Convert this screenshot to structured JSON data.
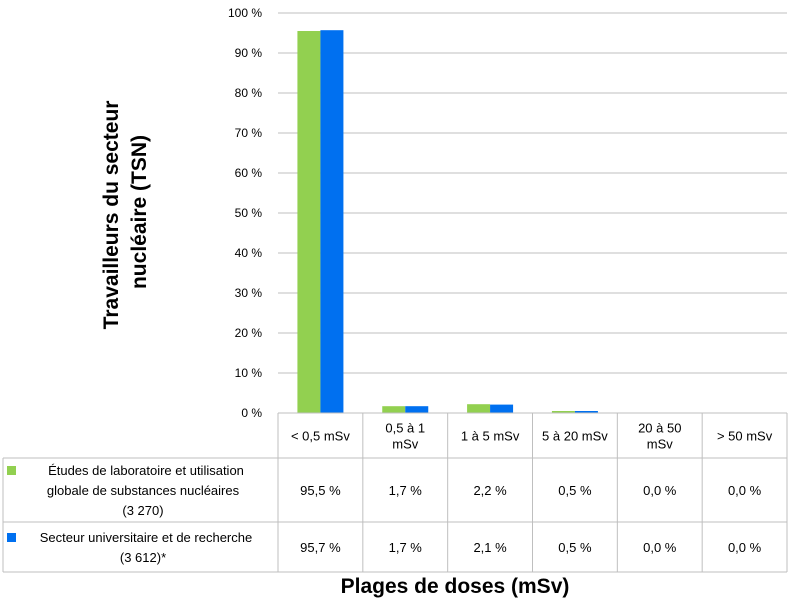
{
  "chart_data": {
    "type": "bar",
    "ylabel_lines": [
      "Travailleurs du secteur",
      "nucléaire (TSN)"
    ],
    "xlabel": "Plages de doses (mSv)",
    "ylim": [
      0,
      100
    ],
    "yticks": [
      "0 %",
      "10 %",
      "20 %",
      "30 %",
      "40 %",
      "50 %",
      "60 %",
      "70 %",
      "80 %",
      "90 %",
      "100 %"
    ],
    "grid": true,
    "categories": [
      [
        "< 0,5 mSv"
      ],
      [
        "0,5 à 1",
        "mSv"
      ],
      [
        "1 à 5 mSv"
      ],
      [
        "5 à 20 mSv"
      ],
      [
        "20 à 50",
        "mSv"
      ],
      [
        "> 50 mSv"
      ]
    ],
    "series": [
      {
        "name_lines": [
          "Études de laboratoire et utilisation",
          "globale de substances nucléaires",
          "(3 270)"
        ],
        "color": "#92d050",
        "values": [
          95.5,
          1.7,
          2.2,
          0.5,
          0.0,
          0.0
        ],
        "labels": [
          "95,5 %",
          "1,7 %",
          "2,2 %",
          "0,5 %",
          "0,0 %",
          "0,0 %"
        ]
      },
      {
        "name_lines": [
          "Secteur universitaire et de recherche",
          "(3 612)*"
        ],
        "color": "#0070f0",
        "values": [
          95.7,
          1.7,
          2.1,
          0.5,
          0.0,
          0.0
        ],
        "labels": [
          "95,7 %",
          "1,7 %",
          "2,1 %",
          "0,5 %",
          "0,0 %",
          "0,0 %"
        ]
      }
    ]
  }
}
